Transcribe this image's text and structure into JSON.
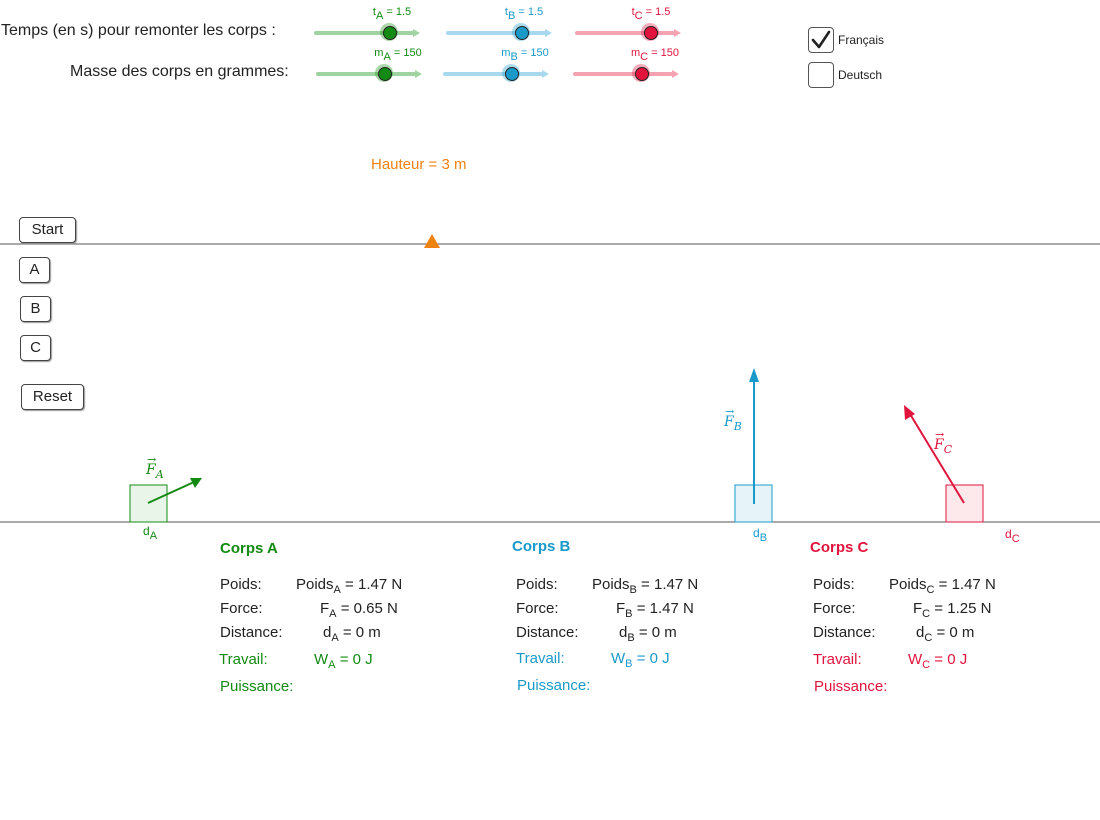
{
  "labels": {
    "time_label": "Temps (en s) pour remonter les corps :",
    "mass_label": "Masse des corps en grammes:",
    "height_label": "Hauteur = 3 m"
  },
  "sliders": {
    "tA": {
      "prefix": "t",
      "sub": "A",
      "value": "1.5",
      "color": "#138a13"
    },
    "tB": {
      "prefix": "t",
      "sub": "B",
      "value": "1.5",
      "color": "#1a9ac9"
    },
    "tC": {
      "prefix": "t",
      "sub": "C",
      "value": "1.5",
      "color": "#e0143c"
    },
    "mA": {
      "prefix": "m",
      "sub": "A",
      "value": "150",
      "color": "#138a13"
    },
    "mB": {
      "prefix": "m",
      "sub": "B",
      "value": "150",
      "color": "#1a9ac9"
    },
    "mC": {
      "prefix": "m",
      "sub": "C",
      "value": "150",
      "color": "#e0143c"
    }
  },
  "languages": {
    "french": {
      "label": "Français",
      "checked": true
    },
    "german": {
      "label": "Deutsch",
      "checked": false
    }
  },
  "buttons": {
    "start": "Start",
    "a": "A",
    "b": "B",
    "c": "C",
    "reset": "Reset"
  },
  "vectors": {
    "fa": "F",
    "fa_sub": "A",
    "fb": "F",
    "fb_sub": "B",
    "fc": "F",
    "fc_sub": "C"
  },
  "distances": {
    "da": "d",
    "da_sub": "A",
    "db": "d",
    "db_sub": "B",
    "dc": "d",
    "dc_sub": "C"
  },
  "bodies": {
    "A": {
      "title": "Corps A",
      "poids_label": "Poids:",
      "poids_sym": "Poids",
      "poids_sub": "A",
      "poids_val": "= 1.47 N",
      "force_label": "Force:",
      "force_sym": "F",
      "force_sub": "A",
      "force_val": "= 0.65 N",
      "dist_label": "Distance:",
      "dist_sym": "d",
      "dist_sub": "A",
      "dist_val": "= 0 m",
      "travail_label": "Travail:",
      "travail_sym": "W",
      "travail_sub": "A",
      "travail_val": "= 0 J",
      "puissance_label": "Puissance:"
    },
    "B": {
      "title": "Corps B",
      "poids_label": "Poids:",
      "poids_sym": "Poids",
      "poids_sub": "B",
      "poids_val": "= 1.47  N",
      "force_label": "Force:",
      "force_sym": "F",
      "force_sub": "B",
      "force_val": "=  1.47 N",
      "dist_label": "Distance:",
      "dist_sym": "d",
      "dist_sub": "B",
      "dist_val": "=  0 m",
      "travail_label": "Travail:",
      "travail_sym": "W",
      "travail_sub": "B",
      "travail_val": "= 0 J",
      "puissance_label": "Puissance:"
    },
    "C": {
      "title": "Corps C",
      "poids_label": "Poids:",
      "poids_sym": "Poids",
      "poids_sub": "C",
      "poids_val": "=   1.47 N",
      "force_label": "Force:",
      "force_sym": "F",
      "force_sub": "C",
      "force_val": "=   1.25 N",
      "dist_label": "Distance:",
      "dist_sym": "d",
      "dist_sub": "C",
      "dist_val": "=   0 m",
      "travail_label": "Travail:",
      "travail_sym": "W",
      "travail_sub": "C",
      "travail_val": "= 0 J",
      "puissance_label": "Puissance:"
    }
  }
}
